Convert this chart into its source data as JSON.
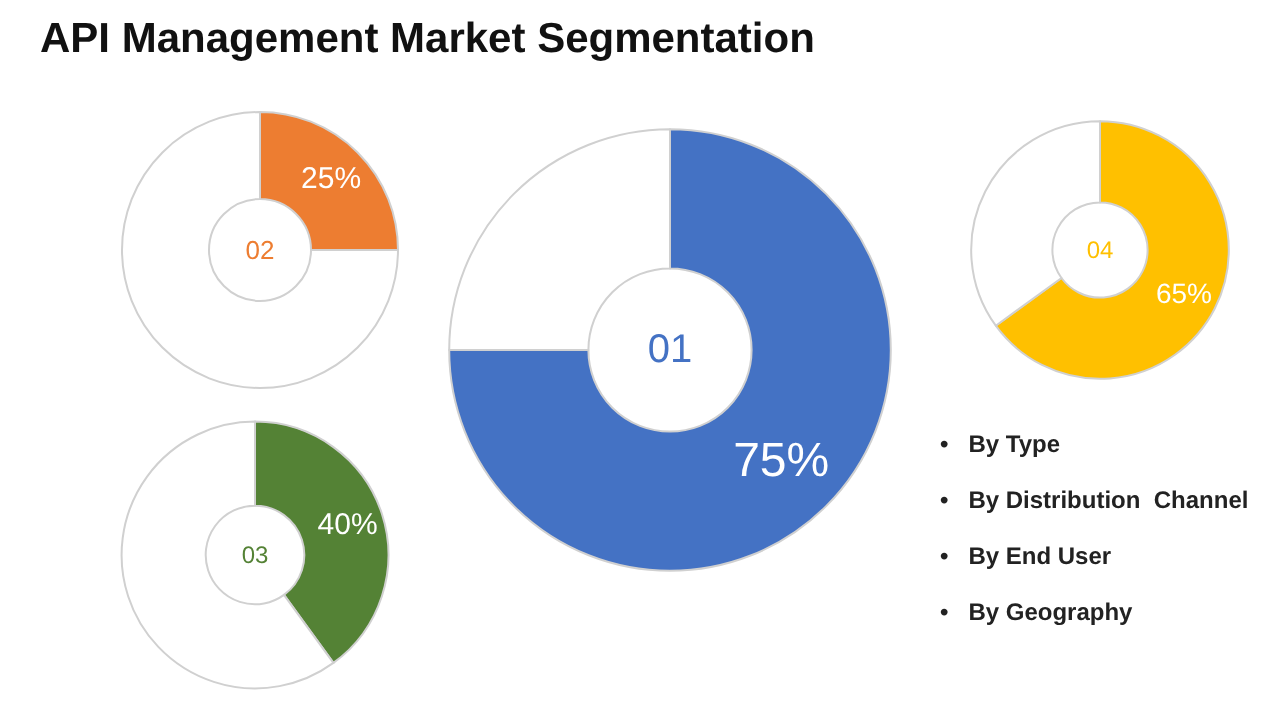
{
  "chart_data": [
    {
      "type": "other",
      "title": "API Management Market Segmentation",
      "annotations": [
        "•   By Type",
        "•   By Distribution  Channel",
        "•   By End User",
        "•   By Geography"
      ]
    },
    {
      "type": "donut",
      "title": "01",
      "categories": [
        null,
        null
      ],
      "values": [
        75,
        25
      ],
      "colors": [
        "#4472c4",
        "#ffffff"
      ],
      "value_labels": [
        "75%",
        null
      ]
    },
    {
      "type": "donut",
      "title": "02",
      "categories": [
        null,
        null
      ],
      "values": [
        25,
        75
      ],
      "colors": [
        "#ed7d31",
        "#ffffff"
      ],
      "value_labels": [
        "25%",
        null
      ]
    },
    {
      "type": "donut",
      "title": "03",
      "categories": [
        null,
        null
      ],
      "values": [
        40,
        60
      ],
      "colors": [
        "#548235",
        "#ffffff"
      ],
      "value_labels": [
        "40%",
        null
      ]
    },
    {
      "type": "donut",
      "title": "04",
      "categories": [
        null,
        null
      ],
      "values": [
        65,
        35
      ],
      "colors": [
        "#ffc000",
        "#ffffff"
      ],
      "value_labels": [
        "65%",
        null
      ]
    }
  ]
}
